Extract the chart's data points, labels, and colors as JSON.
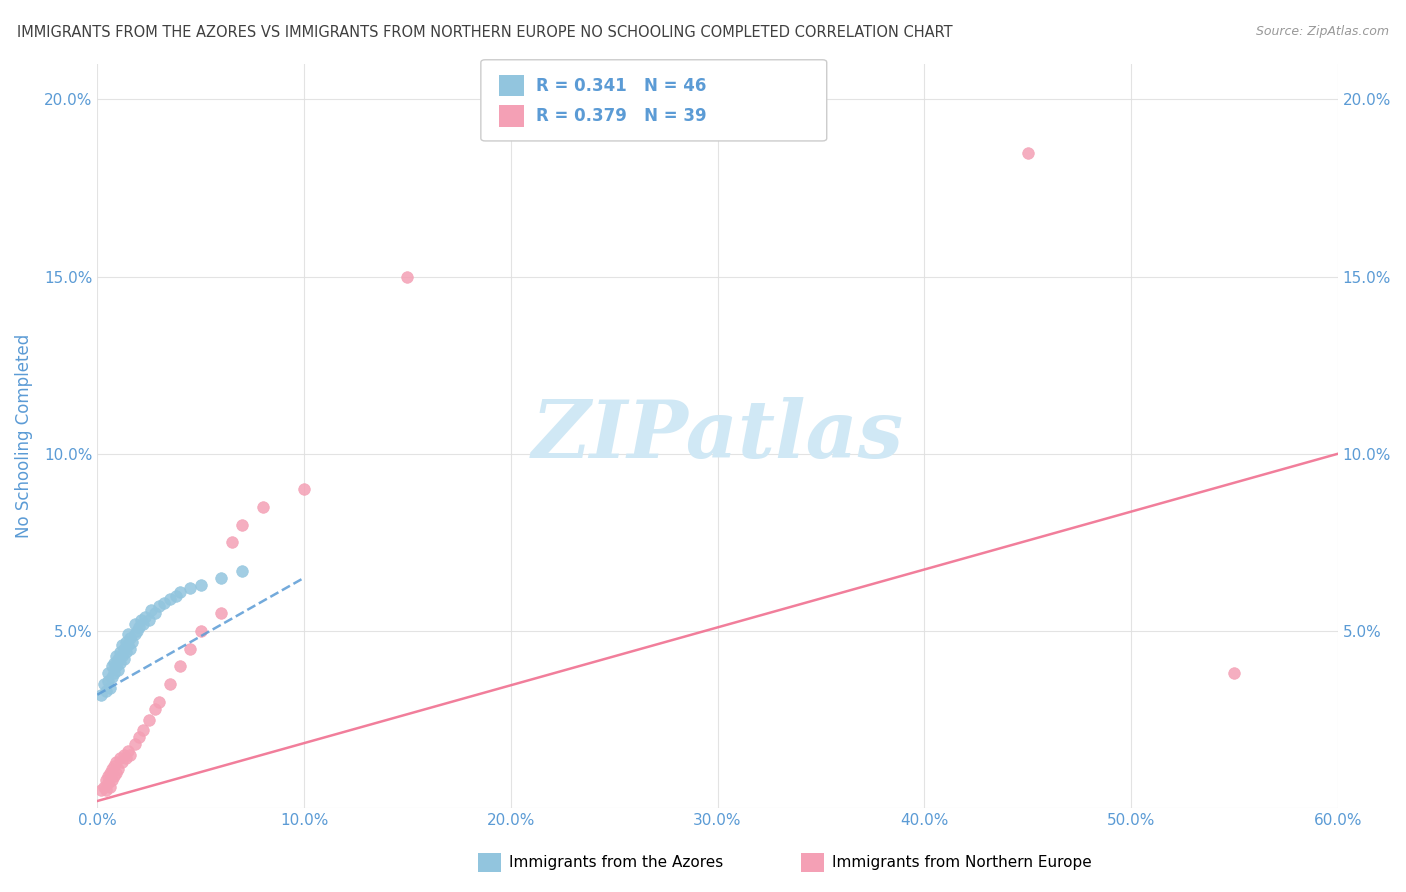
{
  "title": "IMMIGRANTS FROM THE AZORES VS IMMIGRANTS FROM NORTHERN EUROPE NO SCHOOLING COMPLETED CORRELATION CHART",
  "source": "Source: ZipAtlas.com",
  "ylabel": "No Schooling Completed",
  "xlim": [
    0.0,
    0.6
  ],
  "ylim": [
    0.0,
    0.21
  ],
  "xticks": [
    0.0,
    0.1,
    0.2,
    0.3,
    0.4,
    0.5,
    0.6
  ],
  "xtick_labels": [
    "0.0%",
    "10.0%",
    "20.0%",
    "30.0%",
    "40.0%",
    "50.0%",
    "60.0%"
  ],
  "yticks": [
    0.0,
    0.05,
    0.1,
    0.15,
    0.2
  ],
  "ytick_labels": [
    "",
    "5.0%",
    "10.0%",
    "15.0%",
    "20.0%"
  ],
  "azores_R": 0.341,
  "azores_N": 46,
  "north_europe_R": 0.379,
  "north_europe_N": 39,
  "azores_color": "#92C5DE",
  "north_europe_color": "#F4A0B5",
  "azores_line_color": "#5B9BD5",
  "north_europe_line_color": "#F07090",
  "legend_label_azores": "Immigrants from the Azores",
  "legend_label_north": "Immigrants from Northern Europe",
  "watermark": "ZIPatlas",
  "watermark_color": "#D0E8F5",
  "azores_x": [
    0.002,
    0.003,
    0.004,
    0.005,
    0.005,
    0.006,
    0.007,
    0.007,
    0.008,
    0.008,
    0.009,
    0.009,
    0.01,
    0.01,
    0.011,
    0.011,
    0.012,
    0.012,
    0.013,
    0.013,
    0.014,
    0.014,
    0.015,
    0.015,
    0.016,
    0.016,
    0.017,
    0.018,
    0.018,
    0.019,
    0.02,
    0.021,
    0.022,
    0.023,
    0.025,
    0.026,
    0.028,
    0.03,
    0.032,
    0.035,
    0.038,
    0.04,
    0.045,
    0.05,
    0.06,
    0.07
  ],
  "azores_y": [
    0.032,
    0.035,
    0.033,
    0.036,
    0.038,
    0.034,
    0.037,
    0.04,
    0.038,
    0.041,
    0.04,
    0.043,
    0.039,
    0.042,
    0.044,
    0.041,
    0.043,
    0.046,
    0.042,
    0.045,
    0.044,
    0.047,
    0.046,
    0.049,
    0.045,
    0.048,
    0.047,
    0.049,
    0.052,
    0.05,
    0.051,
    0.053,
    0.052,
    0.054,
    0.053,
    0.056,
    0.055,
    0.057,
    0.058,
    0.059,
    0.06,
    0.061,
    0.062,
    0.063,
    0.065,
    0.067
  ],
  "north_x": [
    0.002,
    0.003,
    0.004,
    0.004,
    0.005,
    0.005,
    0.006,
    0.006,
    0.007,
    0.007,
    0.008,
    0.008,
    0.009,
    0.009,
    0.01,
    0.011,
    0.012,
    0.013,
    0.014,
    0.015,
    0.016,
    0.018,
    0.02,
    0.022,
    0.025,
    0.028,
    0.03,
    0.035,
    0.04,
    0.045,
    0.05,
    0.06,
    0.065,
    0.07,
    0.08,
    0.1,
    0.15,
    0.55,
    0.45
  ],
  "north_y": [
    0.005,
    0.006,
    0.005,
    0.008,
    0.007,
    0.009,
    0.006,
    0.01,
    0.008,
    0.011,
    0.009,
    0.012,
    0.01,
    0.013,
    0.011,
    0.014,
    0.013,
    0.015,
    0.014,
    0.016,
    0.015,
    0.018,
    0.02,
    0.022,
    0.025,
    0.028,
    0.03,
    0.035,
    0.04,
    0.045,
    0.05,
    0.055,
    0.075,
    0.08,
    0.085,
    0.09,
    0.15,
    0.038,
    0.185
  ],
  "bg_color": "#FFFFFF",
  "grid_color": "#E0E0E0",
  "title_color": "#404040",
  "axis_label_color": "#5B9BD5",
  "tick_color": "#5B9BD5"
}
